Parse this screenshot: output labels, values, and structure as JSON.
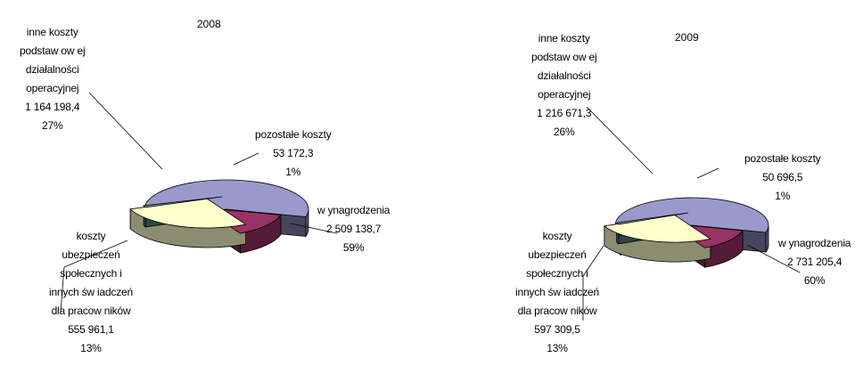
{
  "chart_data": [
    {
      "type": "pie",
      "title": "2008",
      "slices": [
        {
          "name": "wynagrodzenia",
          "value": "2 509 138,7",
          "percent": "59%",
          "label_lines": [
            "w ynagrodzenia"
          ],
          "color": "#9999cc"
        },
        {
          "name": "koszty ubezpieczeń społecznych i innych świadczeń dla pracowników",
          "value": "555 961,1",
          "percent": "13%",
          "label_lines": [
            "koszty",
            "ubezpieczeń",
            "społecznych i",
            "innych św iadczeń",
            "dla pracow ników"
          ],
          "color": "#993366"
        },
        {
          "name": "inne koszty podstawowej działalności operacyjnej",
          "value": "1 164 198,4",
          "percent": "27%",
          "label_lines": [
            "inne koszty",
            "podstaw ow ej",
            "działalności",
            "operacyjnej"
          ],
          "color": "#ffffcc"
        },
        {
          "name": "pozostałe koszty",
          "value": "53 172,3",
          "percent": "1%",
          "label_lines": [
            "pozostałe koszty"
          ],
          "color": "#669999"
        }
      ]
    },
    {
      "type": "pie",
      "title": "2009",
      "slices": [
        {
          "name": "wynagrodzenia",
          "value": "2 731 205,4",
          "percent": "60%",
          "label_lines": [
            "w ynagrodzenia"
          ],
          "color": "#9999cc"
        },
        {
          "name": "koszty ubezpieczeń społecznych i innych świadczeń dla pracowników",
          "value": "597 309,5",
          "percent": "13%",
          "label_lines": [
            "koszty",
            "ubezpieczeń",
            "społecznych i",
            "innych św iadczeń",
            "dla pracow ników"
          ],
          "color": "#993366"
        },
        {
          "name": "inne koszty podstawowej działalności operacyjnej",
          "value": "1 216 671,3",
          "percent": "26%",
          "label_lines": [
            "inne koszty",
            "podstaw ow ej",
            "działalności",
            "operacyjnej"
          ],
          "color": "#ffffcc"
        },
        {
          "name": "pozostałe koszty",
          "value": "50 696,5",
          "percent": "1%",
          "label_lines": [
            "pozostałe koszty"
          ],
          "color": "#669999"
        }
      ]
    }
  ]
}
